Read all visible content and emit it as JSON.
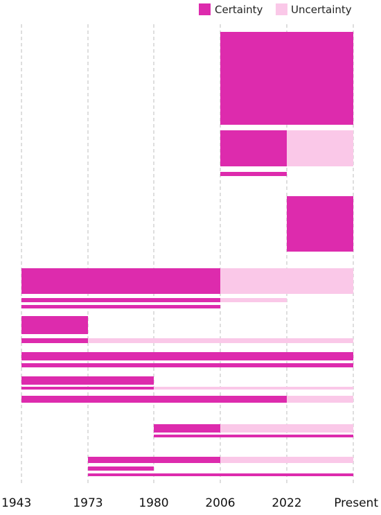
{
  "chart_data": {
    "type": "timeline",
    "x_ticks": [
      "1943",
      "1973",
      "1980",
      "2006",
      "2022",
      "Present"
    ],
    "grid": "vertical dashed at each tick",
    "legend": {
      "position": "top-right",
      "items": [
        {
          "label": "Certainty",
          "color": "#DD2BAD"
        },
        {
          "label": "Uncertainty",
          "color": "#FAC8E8"
        }
      ]
    },
    "segments": [
      {
        "from": "2006",
        "to": "Present",
        "status": "certainty",
        "weight": "tall"
      },
      {
        "from": "2006",
        "to": "2022",
        "status": "certainty",
        "weight": "medium"
      },
      {
        "from": "2022",
        "to": "Present",
        "status": "uncertainty",
        "weight": "medium"
      },
      {
        "from": "2006",
        "to": "2022",
        "status": "certainty",
        "weight": "thin"
      },
      {
        "from": "2022",
        "to": "Present",
        "status": "certainty",
        "weight": "tall"
      },
      {
        "from": "1943",
        "to": "2006",
        "status": "certainty",
        "weight": "medium"
      },
      {
        "from": "2006",
        "to": "Present",
        "status": "uncertainty",
        "weight": "medium"
      },
      {
        "from": "1943",
        "to": "2006",
        "status": "certainty",
        "weight": "thin"
      },
      {
        "from": "2006",
        "to": "2022",
        "status": "uncertainty",
        "weight": "thin"
      },
      {
        "from": "1943",
        "to": "2006",
        "status": "certainty",
        "weight": "thin"
      },
      {
        "from": "1943",
        "to": "1973",
        "status": "certainty",
        "weight": "medium"
      },
      {
        "from": "1943",
        "to": "1973",
        "status": "certainty",
        "weight": "thin"
      },
      {
        "from": "1973",
        "to": "Present",
        "status": "uncertainty",
        "weight": "thin"
      },
      {
        "from": "1943",
        "to": "Present",
        "status": "certainty",
        "weight": "thin"
      },
      {
        "from": "1943",
        "to": "Present",
        "status": "certainty",
        "weight": "thin"
      },
      {
        "from": "1943",
        "to": "1980",
        "status": "certainty",
        "weight": "thin"
      },
      {
        "from": "1943",
        "to": "1980",
        "status": "certainty",
        "weight": "thin"
      },
      {
        "from": "1980",
        "to": "Present",
        "status": "uncertainty",
        "weight": "thin"
      },
      {
        "from": "1943",
        "to": "2022",
        "status": "certainty",
        "weight": "thin"
      },
      {
        "from": "2022",
        "to": "Present",
        "status": "uncertainty",
        "weight": "thin"
      },
      {
        "from": "1980",
        "to": "2006",
        "status": "certainty",
        "weight": "thin"
      },
      {
        "from": "2006",
        "to": "Present",
        "status": "uncertainty",
        "weight": "thin"
      },
      {
        "from": "1980",
        "to": "Present",
        "status": "certainty",
        "weight": "thin"
      },
      {
        "from": "1973",
        "to": "2006",
        "status": "certainty",
        "weight": "thin"
      },
      {
        "from": "2006",
        "to": "Present",
        "status": "uncertainty",
        "weight": "thin"
      },
      {
        "from": "1973",
        "to": "1980",
        "status": "certainty",
        "weight": "thin"
      },
      {
        "from": "1973",
        "to": "Present",
        "status": "certainty",
        "weight": "thin"
      }
    ]
  }
}
